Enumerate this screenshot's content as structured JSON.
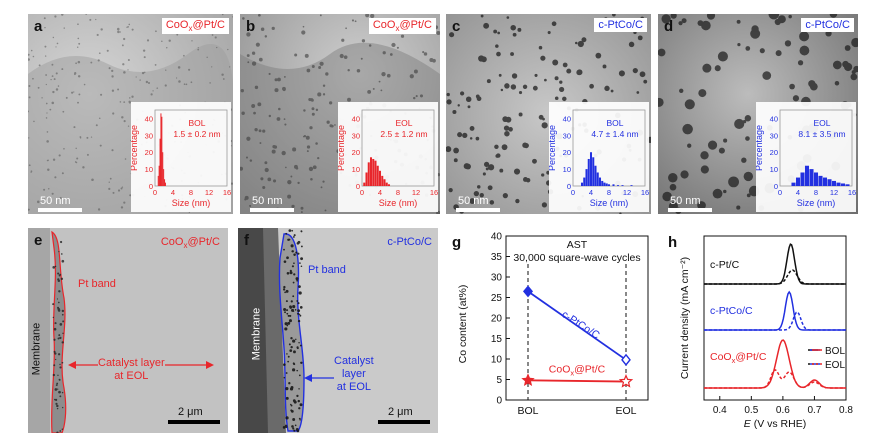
{
  "panels": {
    "a": {
      "letter": "a",
      "tag": "CoOx@Pt/C",
      "tag_main": "CoO",
      "tag_sub": "x",
      "tag_rest": "@Pt/C",
      "scale": "50 nm",
      "stat_label": "BOL",
      "stat_value": "1.5 ± 0.2 nm"
    },
    "b": {
      "letter": "b",
      "tag": "CoOx@Pt/C",
      "tag_main": "CoO",
      "tag_sub": "x",
      "tag_rest": "@Pt/C",
      "scale": "50 nm",
      "stat_label": "EOL",
      "stat_value": "2.5 ± 1.2 nm"
    },
    "c": {
      "letter": "c",
      "tag": "c-PtCo/C",
      "scale": "50 nm",
      "stat_label": "BOL",
      "stat_value": "4.7 ± 1.4 nm"
    },
    "d": {
      "letter": "d",
      "tag": "c-PtCo/C",
      "scale": "50 nm",
      "stat_label": "EOL",
      "stat_value": "8.1 ± 3.5 nm"
    },
    "e": {
      "letter": "e",
      "tag_main": "CoO",
      "tag_sub": "x",
      "tag_rest": "@Pt/C",
      "scale": "2 μm",
      "band": "Pt band",
      "membrane": "Membrane",
      "catalyst1": "Catalyst layer",
      "catalyst2": "at EOL"
    },
    "f": {
      "letter": "f",
      "tag": "c-PtCo/C",
      "scale": "2 μm",
      "band": "Pt band",
      "membrane": "Membrane",
      "catalyst1": "Catalyst",
      "catalyst2": "layer",
      "catalyst3": "at EOL"
    },
    "g": {
      "letter": "g"
    },
    "h": {
      "letter": "h"
    }
  },
  "histogram_axes": {
    "xlabel": "Size (nm)",
    "ylabel": "Percentage",
    "xticks": [
      "0",
      "4",
      "8",
      "12",
      "16"
    ],
    "yticks": [
      "0",
      "10",
      "20",
      "30",
      "40"
    ]
  },
  "colors": {
    "red": "#e8262b",
    "blue": "#2230e0",
    "black": "#111111"
  },
  "chart_data": [
    {
      "type": "bar",
      "panel": "a",
      "xlabel": "Size (nm)",
      "ylabel": "Percentage",
      "xlim": [
        0,
        16
      ],
      "ylim": [
        0,
        45
      ],
      "x": [
        0.7,
        0.9,
        1.1,
        1.3,
        1.5,
        1.7,
        1.9,
        2.1,
        2.3
      ],
      "values": [
        6,
        12,
        28,
        43,
        41,
        20,
        10,
        4,
        2
      ],
      "color": "#e8262b"
    },
    {
      "type": "bar",
      "panel": "b",
      "xlabel": "Size (nm)",
      "ylabel": "Percentage",
      "xlim": [
        0,
        16
      ],
      "ylim": [
        0,
        45
      ],
      "x": [
        0.5,
        1.0,
        1.5,
        2.0,
        2.5,
        3.0,
        3.5,
        4.0,
        4.5,
        5.0,
        5.5,
        6.0
      ],
      "values": [
        2,
        8,
        14,
        17,
        16,
        15,
        12,
        9,
        6,
        4,
        2,
        1
      ],
      "color": "#e8262b"
    },
    {
      "type": "bar",
      "panel": "c",
      "xlabel": "Size (nm)",
      "ylabel": "Percentage",
      "xlim": [
        0,
        16
      ],
      "ylim": [
        0,
        45
      ],
      "x": [
        2.0,
        2.5,
        3.0,
        3.5,
        4.0,
        4.5,
        5.0,
        5.5,
        6.0,
        6.5,
        7.0,
        7.5,
        8.0,
        9.0,
        10.0,
        11.0,
        13.0
      ],
      "values": [
        2,
        5,
        10,
        16,
        20,
        17,
        12,
        8,
        5,
        3,
        2,
        1.5,
        1,
        1,
        0.5,
        0.5,
        0.5
      ],
      "color": "#2230e0"
    },
    {
      "type": "bar",
      "panel": "d",
      "xlabel": "Size (nm)",
      "ylabel": "Percentage",
      "xlim": [
        0,
        16
      ],
      "ylim": [
        0,
        45
      ],
      "x": [
        3,
        4,
        5,
        6,
        7,
        8,
        9,
        10,
        11,
        12,
        13,
        14,
        15
      ],
      "values": [
        2,
        5,
        8,
        12,
        10,
        8,
        6,
        5,
        4,
        3,
        2,
        1.5,
        1
      ],
      "color": "#2230e0"
    },
    {
      "type": "line",
      "panel": "g",
      "title_line1": "AST",
      "title_line2": "30,000 square-wave cycles",
      "ylabel": "Co content (at%)",
      "categories": [
        "BOL",
        "EOL"
      ],
      "ylim": [
        0,
        40
      ],
      "yticks": [
        0,
        5,
        10,
        15,
        20,
        25,
        30,
        35,
        40
      ],
      "series": [
        {
          "name": "c-PtCo/C",
          "values": [
            26.5,
            9.8
          ],
          "color": "#2230e0"
        },
        {
          "name": "CoOx@Pt/C",
          "name_main": "CoO",
          "name_sub": "x",
          "name_rest": "@Pt/C",
          "values": [
            4.8,
            4.5
          ],
          "color": "#e8262b"
        }
      ]
    },
    {
      "type": "line",
      "panel": "h",
      "xlabel": "E (V vs RHE)",
      "xlabel_italic": "E",
      "xlabel_rest": " (V vs RHE)",
      "ylabel": "Current density (mA cm⁻²)",
      "xlim": [
        0.35,
        0.8
      ],
      "xticks": [
        "0.4",
        "0.5",
        "0.6",
        "0.7",
        "0.8"
      ],
      "curve_labels": [
        "c-Pt/C",
        "c-PtCo/C"
      ],
      "curve_label_coox": {
        "main": "CoO",
        "sub": "x",
        "rest": "@Pt/C"
      },
      "legend": [
        "BOL",
        "EOL"
      ],
      "series": [
        {
          "name": "c-Pt/C BOL",
          "color": "#111111",
          "dashed": false,
          "offset": 2,
          "peaks": [
            [
              0.625,
              1.0,
              0.012
            ]
          ]
        },
        {
          "name": "c-Pt/C EOL",
          "color": "#111111",
          "dashed": true,
          "offset": 2,
          "peaks": [
            [
              0.63,
              0.35,
              0.015
            ]
          ]
        },
        {
          "name": "c-PtCo/C BOL",
          "color": "#2230e0",
          "dashed": false,
          "offset": 1,
          "peaks": [
            [
              0.62,
              0.95,
              0.012
            ]
          ]
        },
        {
          "name": "c-PtCo/C EOL",
          "color": "#2230e0",
          "dashed": true,
          "offset": 1,
          "peaks": [
            [
              0.645,
              0.45,
              0.012
            ]
          ]
        },
        {
          "name": "CoOx@Pt/C BOL",
          "color": "#e8262b",
          "dashed": false,
          "offset": 0,
          "peaks": [
            [
              0.6,
              1.2,
              0.02
            ],
            [
              0.7,
              0.2,
              0.015
            ]
          ]
        },
        {
          "name": "CoOx@Pt/C EOL",
          "color": "#e8262b",
          "dashed": true,
          "offset": 0,
          "peaks": [
            [
              0.575,
              0.45,
              0.013
            ],
            [
              0.62,
              0.4,
              0.015
            ],
            [
              0.7,
              0.15,
              0.015
            ]
          ]
        }
      ]
    }
  ]
}
